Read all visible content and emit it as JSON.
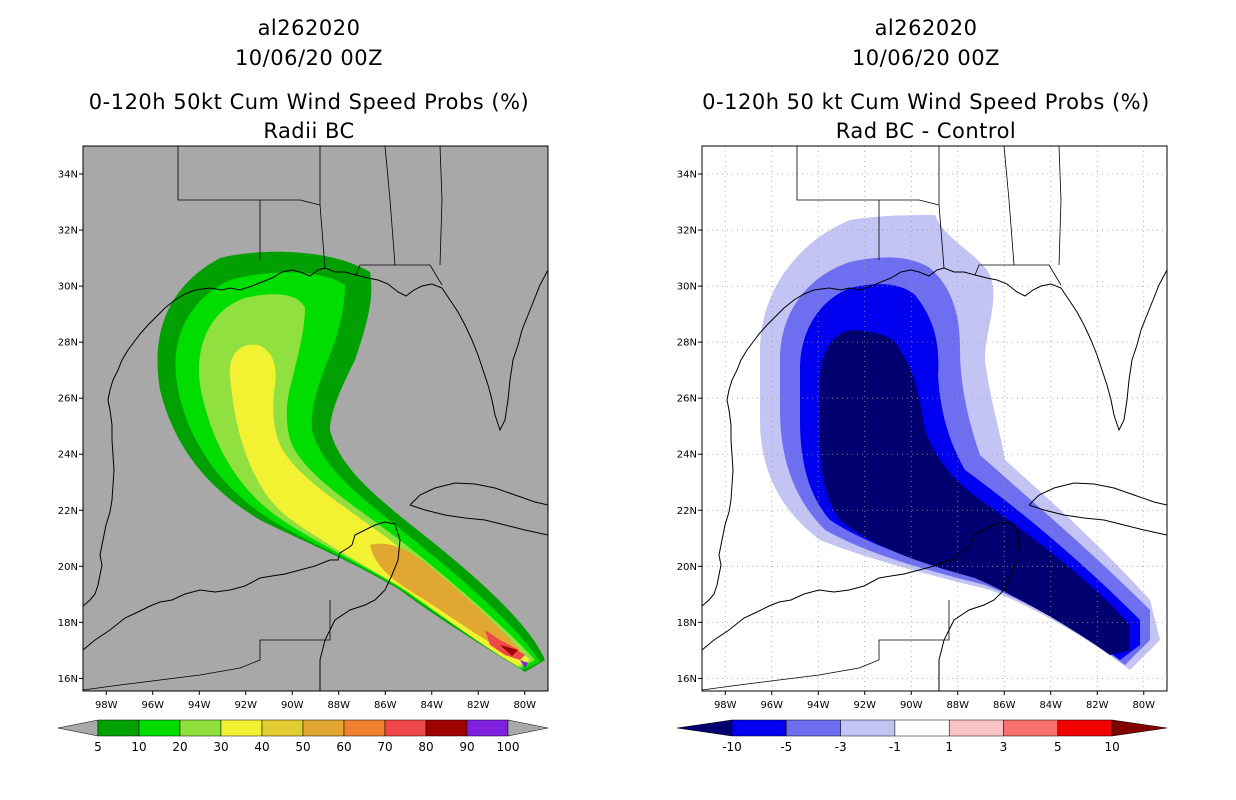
{
  "colors": {
    "land_bg_left": "#a8a8a8",
    "prob_scale": [
      "#00a000",
      "#00dd00",
      "#90e040",
      "#f2f232",
      "#e2cc30",
      "#e0a830",
      "#f08030",
      "#f04848",
      "#a00000",
      "#8020e0"
    ],
    "diff_scale": [
      "#000070",
      "#0000f0",
      "#6e6ef0",
      "#c4c4f4",
      "#ffffff",
      "#f8c4c4",
      "#f87070",
      "#f00000",
      "#800000"
    ]
  },
  "left_panel": {
    "title_line1": "al262020",
    "title_line2": "10/06/20 00Z",
    "title_line3": "0-120h 50kt Cum Wind Speed Probs (%)",
    "title_line4": "Radii BC",
    "colorbar_labels": [
      "5",
      "10",
      "20",
      "30",
      "40",
      "50",
      "60",
      "70",
      "80",
      "90",
      "100"
    ]
  },
  "right_panel": {
    "title_line1": "al262020",
    "title_line2": "10/06/20 00Z",
    "title_line3": "0-120h 50 kt Cum Wind Speed Probs (%)",
    "title_line4": "Rad BC - Control",
    "colorbar_labels": [
      "-10",
      "-5",
      "-3",
      "-1",
      "1",
      "3",
      "5",
      "10"
    ]
  },
  "map": {
    "lat_labels": [
      "34N",
      "32N",
      "30N",
      "28N",
      "26N",
      "24N",
      "22N",
      "20N",
      "18N",
      "16N"
    ],
    "lon_labels": [
      "98W",
      "96W",
      "94W",
      "92W",
      "90W",
      "88W",
      "86W",
      "84W",
      "82W",
      "80W"
    ]
  }
}
